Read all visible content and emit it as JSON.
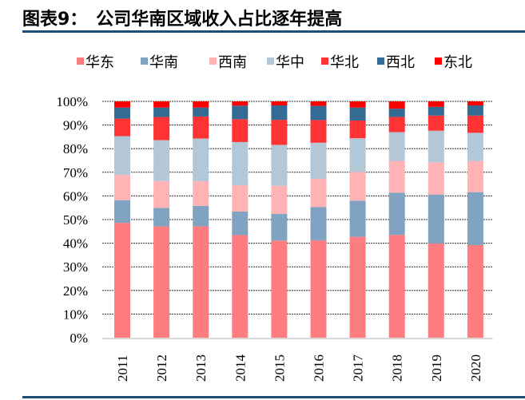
{
  "title": "图表9：　公司华南区域收入占比逐年提高",
  "chart_data": {
    "type": "bar",
    "stacked": true,
    "percent": true,
    "categories": [
      "2011",
      "2012",
      "2013",
      "2014",
      "2015",
      "2016",
      "2017",
      "2018",
      "2019",
      "2020"
    ],
    "ylim": [
      0,
      100
    ],
    "yticks": [
      "0%",
      "10%",
      "20%",
      "30%",
      "40%",
      "50%",
      "60%",
      "70%",
      "80%",
      "90%",
      "100%"
    ],
    "grid": true,
    "legend_position": "top",
    "series": [
      {
        "name": "华东",
        "color": "#ff7c80",
        "values": [
          48.6,
          47.1,
          47.1,
          43.4,
          41.1,
          41.2,
          42.7,
          43.5,
          39.9,
          39.2
        ]
      },
      {
        "name": "华南",
        "color": "#7fa3c0",
        "values": [
          9.6,
          7.8,
          8.7,
          10.0,
          11.3,
          14.1,
          15.3,
          17.9,
          20.7,
          22.4
        ]
      },
      {
        "name": "西南",
        "color": "#ffb3b5",
        "values": [
          10.7,
          11.4,
          10.4,
          11.1,
          11.9,
          11.9,
          12.1,
          13.4,
          13.6,
          13.2
        ]
      },
      {
        "name": "华中",
        "color": "#b4c7d7",
        "values": [
          16.4,
          17.3,
          18.1,
          18.3,
          17.3,
          15.3,
          14.3,
          12.2,
          13.4,
          11.9
        ]
      },
      {
        "name": "华北",
        "color": "#ff3333",
        "values": [
          7.4,
          9.8,
          9.3,
          9.7,
          10.6,
          9.6,
          7.5,
          6.4,
          6.4,
          7.3
        ]
      },
      {
        "name": "西北",
        "color": "#336b94",
        "values": [
          4.7,
          4.0,
          3.8,
          5.7,
          6.1,
          6.0,
          5.5,
          3.5,
          3.7,
          4.3
        ]
      },
      {
        "name": "东北",
        "color": "#ff0000",
        "values": [
          2.6,
          2.6,
          2.6,
          1.8,
          1.7,
          1.9,
          2.6,
          3.1,
          2.3,
          1.7
        ]
      }
    ]
  }
}
